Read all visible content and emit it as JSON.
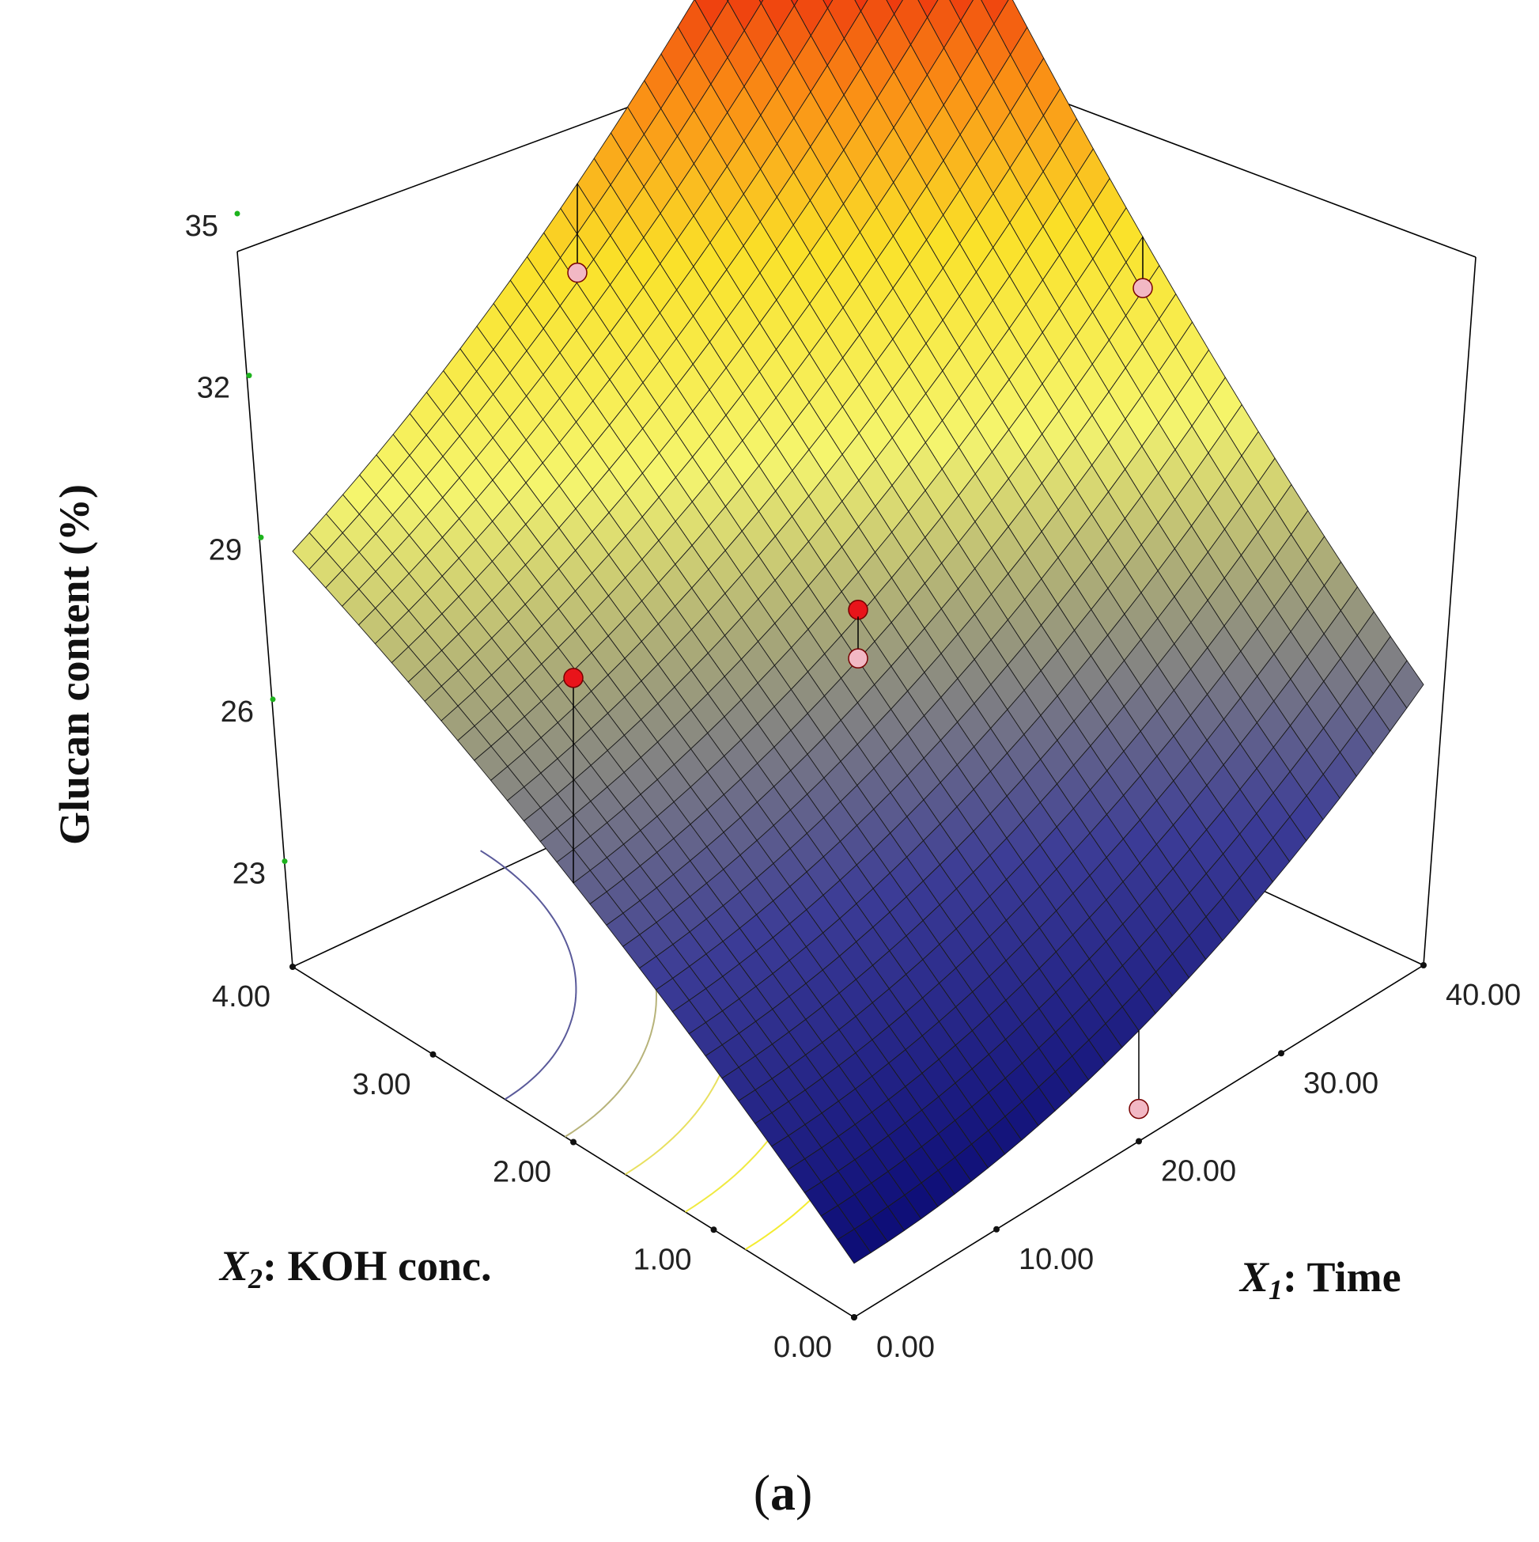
{
  "chart_data": {
    "type": "surface3d",
    "z_axis": {
      "label": "Glucan content (%)",
      "ticks": [
        "23",
        "26",
        "29",
        "32",
        "35"
      ],
      "range": [
        21,
        35
      ]
    },
    "x1_axis": {
      "symbol": "X",
      "subscript": "1",
      "name": ": Time",
      "ticks": [
        "0.00",
        "10.00",
        "20.00",
        "30.00",
        "40.00"
      ],
      "range": [
        0,
        40
      ]
    },
    "x2_axis": {
      "symbol": "X",
      "subscript": "2",
      "name": ": KOH conc.",
      "ticks": [
        "0.00",
        "1.00",
        "2.00",
        "3.00",
        "4.00"
      ],
      "range": [
        0,
        4
      ]
    },
    "contour_levels": [
      22.5,
      24.5,
      26,
      27.5,
      29
    ],
    "design_points": [
      {
        "time": 40,
        "koh": 2,
        "glucan": 30.3
      },
      {
        "time": 20,
        "koh": 2,
        "glucan": 27.6
      },
      {
        "time": 20,
        "koh": 2,
        "glucan": 26.7
      },
      {
        "time": 0,
        "koh": 2,
        "glucan": 29.6
      },
      {
        "time": 20,
        "koh": 4,
        "glucan": 30.6
      },
      {
        "time": 20,
        "koh": 0,
        "glucan": 21.6
      }
    ],
    "caption": {
      "open": "(",
      "letter": "a",
      "close": ")"
    }
  }
}
